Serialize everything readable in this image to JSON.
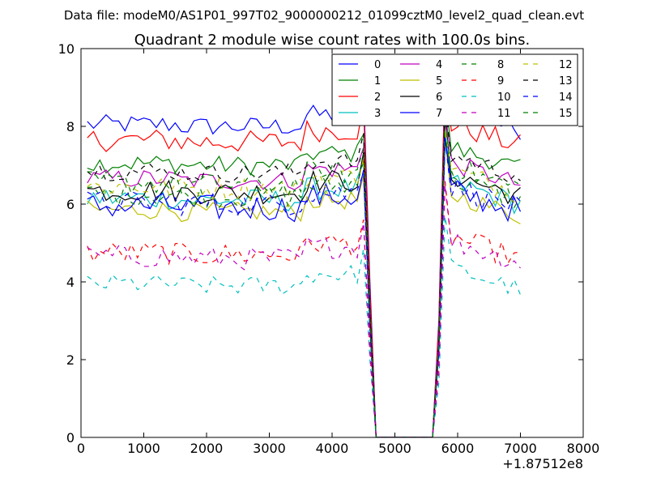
{
  "chart_data": {
    "type": "line",
    "suptitle": "Data file: modeM0/AS1P01_997T02_9000000212_01099cztM0_level2_quad_clean.evt",
    "title": "Quadrant 2 module wise count rates with 100.0s bins.",
    "xlabel": "",
    "ylabel": "",
    "x_offset_label": "+1.87512e8",
    "xlim": [
      0,
      8000
    ],
    "ylim": [
      0,
      10
    ],
    "x_ticks": [
      0,
      1000,
      2000,
      3000,
      4000,
      5000,
      6000,
      7000,
      8000
    ],
    "y_ticks": [
      0,
      2,
      4,
      6,
      8,
      10
    ],
    "grid": false,
    "legend_position": "top-right",
    "legend_columns": 4,
    "bin_width_s": 100,
    "x_note": "x values are bin centres at 100 s spacing from 100 to 7000 (offset +1.87512e8); data gap near 4650-5650",
    "series": [
      {
        "name": "0",
        "color": "#0000ff",
        "style": "solid",
        "base": 8.0,
        "amp": 0.25
      },
      {
        "name": "1",
        "color": "#008000",
        "style": "solid",
        "base": 7.0,
        "amp": 0.25
      },
      {
        "name": "2",
        "color": "#ff0000",
        "style": "solid",
        "base": 7.6,
        "amp": 0.3
      },
      {
        "name": "3",
        "color": "#00bfbf",
        "style": "solid",
        "base": 6.1,
        "amp": 0.3
      },
      {
        "name": "4",
        "color": "#bf00bf",
        "style": "solid",
        "base": 6.6,
        "amp": 0.25
      },
      {
        "name": "5",
        "color": "#bfbf00",
        "style": "solid",
        "base": 5.8,
        "amp": 0.25
      },
      {
        "name": "6",
        "color": "#000000",
        "style": "solid",
        "base": 6.3,
        "amp": 0.3
      },
      {
        "name": "7",
        "color": "#0000ff",
        "style": "solid",
        "base": 5.9,
        "amp": 0.35
      },
      {
        "name": "8",
        "color": "#008000",
        "style": "dashed",
        "base": 6.2,
        "amp": 0.3
      },
      {
        "name": "9",
        "color": "#ff0000",
        "style": "dashed",
        "base": 4.7,
        "amp": 0.3
      },
      {
        "name": "10",
        "color": "#00bfbf",
        "style": "dashed",
        "base": 3.9,
        "amp": 0.25
      },
      {
        "name": "11",
        "color": "#bf00bf",
        "style": "dashed",
        "base": 4.6,
        "amp": 0.3
      },
      {
        "name": "12",
        "color": "#bfbf00",
        "style": "dashed",
        "base": 6.4,
        "amp": 0.3
      },
      {
        "name": "13",
        "color": "#000000",
        "style": "dashed",
        "base": 6.8,
        "amp": 0.25
      },
      {
        "name": "14",
        "color": "#0000ff",
        "style": "dashed",
        "base": 6.0,
        "amp": 0.3
      },
      {
        "name": "15",
        "color": "#008000",
        "style": "dashed",
        "base": 6.5,
        "amp": 0.3
      }
    ]
  }
}
